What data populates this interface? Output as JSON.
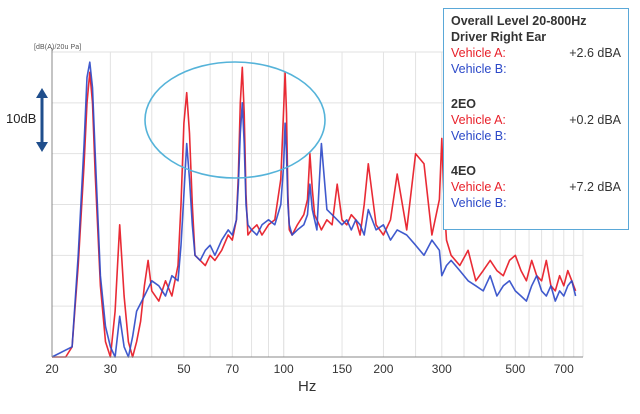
{
  "chart_data": {
    "type": "line",
    "title": "",
    "xlabel": "Hz",
    "ylabel": "[dB(A)/20u Pa]",
    "x_scale": "log",
    "xlim": [
      20,
      800
    ],
    "ylim": [
      0,
      60
    ],
    "x_ticks": [
      20,
      30,
      50,
      70,
      100,
      150,
      200,
      300,
      500,
      700
    ],
    "x_tick_labels": [
      "20",
      "30",
      "50",
      "70",
      "100",
      "150",
      "200",
      "300",
      "500",
      "700"
    ],
    "scale_marker": "10dB",
    "series": [
      {
        "name": "Vehicle A",
        "color": "#e8202a",
        "x": [
          20,
          22,
          23,
          24,
          25,
          25.5,
          26,
          26.5,
          27,
          28,
          29,
          30,
          31,
          32,
          33,
          34,
          35,
          36,
          37,
          38,
          39,
          40,
          42,
          44,
          46,
          48,
          49,
          50,
          51,
          52,
          53,
          54,
          56,
          58,
          60,
          62,
          65,
          68,
          70,
          72,
          73,
          74,
          75,
          76,
          77,
          78,
          80,
          83,
          86,
          90,
          94,
          98,
          100,
          101,
          102,
          103,
          104,
          106,
          110,
          115,
          118,
          120,
          122,
          124,
          126,
          128,
          130,
          135,
          140,
          145,
          150,
          155,
          160,
          165,
          170,
          175,
          180,
          190,
          200,
          210,
          220,
          235,
          250,
          265,
          280,
          295,
          300,
          305,
          310,
          320,
          340,
          360,
          380,
          400,
          420,
          440,
          460,
          480,
          500,
          520,
          540,
          560,
          580,
          600,
          620,
          640,
          660,
          680,
          700,
          720,
          740,
          760
        ],
        "values": [
          0,
          0,
          2,
          18,
          38,
          50,
          56,
          50,
          36,
          14,
          3,
          0,
          9,
          26,
          12,
          3,
          0,
          3,
          7,
          14,
          19,
          13,
          11,
          15,
          12,
          18,
          30,
          46,
          52,
          44,
          30,
          20,
          19,
          18,
          20,
          19,
          21,
          24,
          23,
          27,
          36,
          50,
          57,
          48,
          32,
          24,
          25,
          26,
          24,
          26,
          27,
          35,
          49,
          56,
          48,
          32,
          25,
          24,
          26,
          28,
          31,
          40,
          33,
          28,
          27,
          26,
          25,
          27,
          26,
          34,
          27,
          26,
          28,
          27,
          24,
          30,
          38,
          26,
          24,
          27,
          36,
          25,
          40,
          38,
          24,
          31,
          43,
          30,
          23,
          20,
          18,
          21,
          15,
          17,
          19,
          17,
          16,
          19,
          20,
          17,
          15,
          19,
          16,
          15,
          19,
          14,
          13,
          16,
          14,
          17,
          15,
          13
        ]
      },
      {
        "name": "Vehicle B",
        "color": "#2b48c8",
        "x": [
          20,
          23,
          24,
          25,
          25.5,
          26,
          26.5,
          27,
          27.5,
          28,
          29,
          30,
          31,
          32,
          33,
          34,
          35,
          36,
          38,
          40,
          42,
          44,
          46,
          48,
          49,
          50,
          51,
          52,
          53,
          54,
          56,
          58,
          60,
          62,
          65,
          68,
          70,
          72,
          73,
          74,
          75,
          76,
          77,
          78,
          80,
          83,
          86,
          90,
          94,
          98,
          100,
          101,
          102,
          103,
          104,
          106,
          110,
          115,
          118,
          120,
          122,
          124,
          126,
          128,
          130,
          135,
          140,
          145,
          150,
          155,
          160,
          165,
          170,
          175,
          180,
          190,
          200,
          210,
          220,
          235,
          250,
          265,
          280,
          295,
          300,
          310,
          320,
          340,
          360,
          380,
          400,
          420,
          440,
          460,
          480,
          500,
          520,
          540,
          560,
          580,
          600,
          620,
          640,
          660,
          680,
          700,
          720,
          740,
          760
        ],
        "values": [
          0,
          2,
          20,
          42,
          55,
          58,
          53,
          40,
          28,
          16,
          6,
          2,
          0,
          8,
          2,
          0,
          4,
          9,
          12,
          15,
          14,
          12,
          16,
          15,
          22,
          32,
          42,
          35,
          26,
          20,
          19,
          21,
          22,
          20,
          23,
          25,
          24,
          27,
          34,
          44,
          50,
          42,
          30,
          26,
          25,
          24,
          26,
          27,
          26,
          30,
          38,
          46,
          40,
          30,
          26,
          24,
          25,
          26,
          28,
          34,
          29,
          27,
          25,
          34,
          42,
          29,
          28,
          27,
          26,
          27,
          25,
          27,
          26,
          24,
          29,
          25,
          26,
          23,
          25,
          24,
          22,
          20,
          23,
          21,
          16,
          18,
          19,
          17,
          15,
          14,
          13,
          16,
          12,
          14,
          15,
          13,
          12,
          11,
          14,
          16,
          13,
          12,
          14,
          11,
          13,
          12,
          14,
          15,
          12
        ]
      }
    ],
    "annotations": [
      "ellipse highlighting the main engine-order peaks between 50 and 130 Hz"
    ]
  },
  "labels": {
    "y_unit": "[dB(A)/20u Pa]",
    "scale": "10dB",
    "xaxis": "Hz"
  },
  "infobox": {
    "title_line1": "Overall Level 20-800Hz",
    "title_line2": "Driver Right Ear",
    "sections": [
      {
        "header": "",
        "vehicle_a_label": "Vehicle A:",
        "vehicle_a_value": "+2.6 dBA",
        "vehicle_b_label": "Vehicle B:"
      },
      {
        "header": "2EO",
        "vehicle_a_label": "Vehicle A:",
        "vehicle_a_value": "+0.2 dBA",
        "vehicle_b_label": "Vehicle B:"
      },
      {
        "header": "4EO",
        "vehicle_a_label": "Vehicle A:",
        "vehicle_a_value": "+7.2 dBA",
        "vehicle_b_label": "Vehicle B:"
      }
    ]
  },
  "colors": {
    "vehicle_a": "#e8202a",
    "vehicle_b": "#2b48c8",
    "arrow": "#1f4e8c",
    "ellipse": "#55b3d9",
    "grid": "#e2e2e2",
    "infobox_border": "#5aa8d8"
  }
}
